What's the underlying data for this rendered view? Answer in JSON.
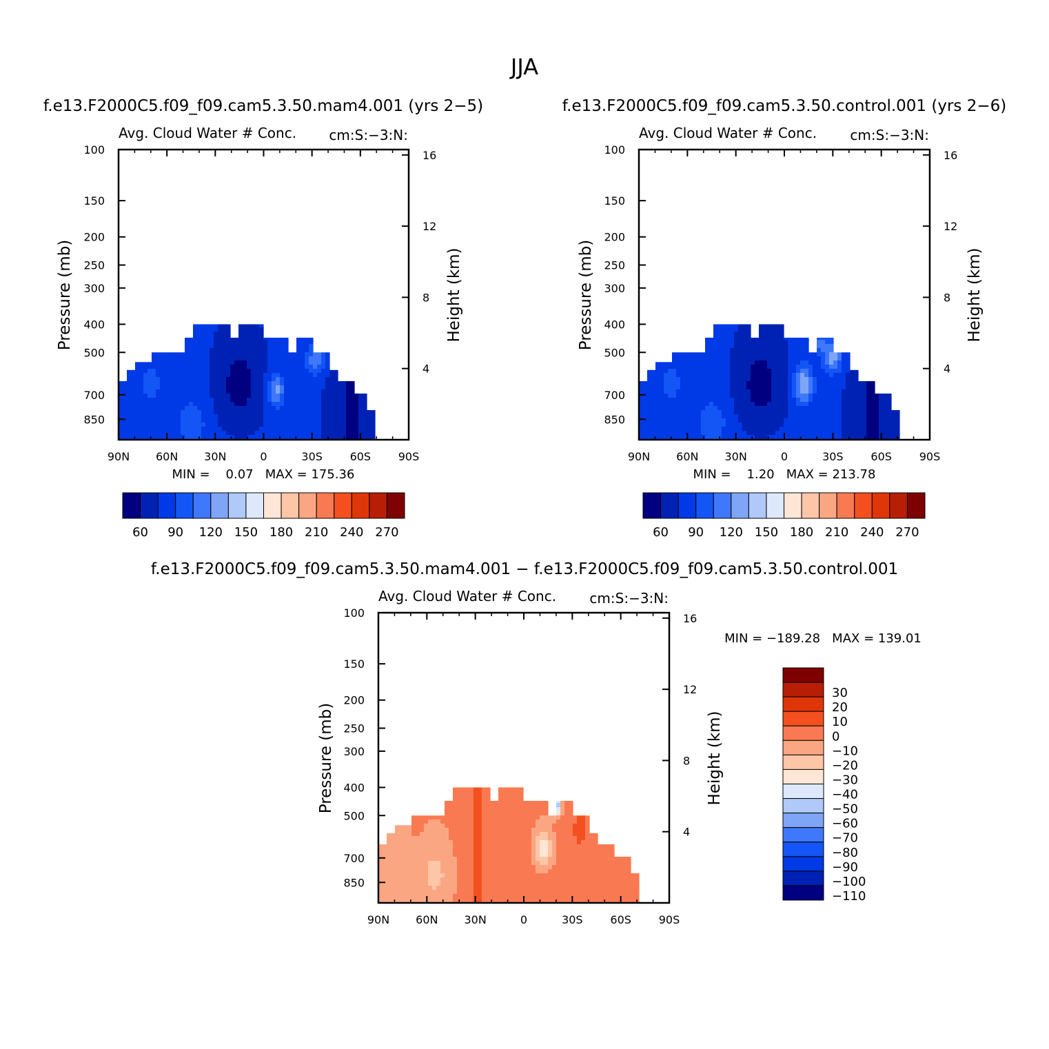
{
  "figure": {
    "main_title": "JJA"
  },
  "chart_data": [
    {
      "type": "heatmap",
      "case_title": "f.e13.F2000C5.f09_f09.cam5.3.50.mam4.001 (yrs 2−5)",
      "variable_label": "Avg. Cloud Water # Conc.",
      "units_label": "cm:S:−3:N:",
      "ylabel": "Pressure (mb)",
      "y2label": "Height (km)",
      "x_ticks": [
        "90N",
        "60N",
        "30N",
        "0",
        "30S",
        "60S",
        "90S"
      ],
      "xlim": [
        90,
        -90
      ],
      "y_ticks": [
        100,
        150,
        200,
        250,
        300,
        400,
        500,
        700,
        850
      ],
      "ylim": [
        100,
        1000
      ],
      "y_scale": "log",
      "y2_ticks": [
        16,
        12,
        8,
        4
      ],
      "min_max": "MIN =    0.07   MAX = 175.36",
      "colorbar_ticks": [
        "60",
        "90",
        "120",
        "150",
        "180",
        "210",
        "240",
        "270"
      ],
      "colorbar_orientation": "horizontal",
      "data_field": "cloud water number concentration, values mostly 0-175, highest near 5N-15S at 500-850 mb",
      "top_profile": [
        [
          90,
          620
        ],
        [
          85,
          575
        ],
        [
          80,
          540
        ],
        [
          70,
          500
        ],
        [
          50,
          445
        ],
        [
          45,
          400
        ],
        [
          30,
          400
        ],
        [
          25,
          400
        ],
        [
          20,
          445
        ],
        [
          15,
          400
        ],
        [
          5,
          400
        ],
        [
          0,
          445
        ],
        [
          -5,
          445
        ],
        [
          -15,
          500
        ],
        [
          -20,
          445
        ],
        [
          -30,
          500
        ],
        [
          -40,
          575
        ],
        [
          -45,
          625
        ],
        [
          -55,
          690
        ],
        [
          -65,
          780
        ],
        [
          -70,
          800
        ]
      ]
    },
    {
      "type": "heatmap",
      "case_title": "f.e13.F2000C5.f09_f09.cam5.3.50.control.001 (yrs 2−6)",
      "variable_label": "Avg. Cloud Water # Conc.",
      "units_label": "cm:S:−3:N:",
      "ylabel": "Pressure (mb)",
      "y2label": "Height (km)",
      "x_ticks": [
        "90N",
        "60N",
        "30N",
        "0",
        "30S",
        "60S",
        "90S"
      ],
      "xlim": [
        90,
        -90
      ],
      "y_ticks": [
        100,
        150,
        200,
        250,
        300,
        400,
        500,
        700,
        850
      ],
      "ylim": [
        100,
        1000
      ],
      "y_scale": "log",
      "y2_ticks": [
        16,
        12,
        8,
        4
      ],
      "min_max": "MIN =    1.20   MAX = 213.78",
      "colorbar_ticks": [
        "60",
        "90",
        "120",
        "150",
        "180",
        "210",
        "240",
        "270"
      ],
      "colorbar_orientation": "horizontal",
      "data_field": "cloud water number concentration, values mostly 0-214, highest near 10S-25S at 500-850 mb",
      "top_profile": [
        [
          90,
          620
        ],
        [
          85,
          575
        ],
        [
          80,
          540
        ],
        [
          70,
          500
        ],
        [
          50,
          445
        ],
        [
          45,
          400
        ],
        [
          30,
          400
        ],
        [
          25,
          400
        ],
        [
          20,
          445
        ],
        [
          15,
          400
        ],
        [
          5,
          400
        ],
        [
          0,
          445
        ],
        [
          -5,
          445
        ],
        [
          -15,
          500
        ],
        [
          -20,
          445
        ],
        [
          -30,
          500
        ],
        [
          -40,
          575
        ],
        [
          -45,
          625
        ],
        [
          -55,
          690
        ],
        [
          -65,
          780
        ],
        [
          -70,
          800
        ]
      ]
    },
    {
      "type": "heatmap",
      "case_title": "f.e13.F2000C5.f09_f09.cam5.3.50.mam4.001 − f.e13.F2000C5.f09_f09.cam5.3.50.control.001",
      "variable_label": "Avg. Cloud Water # Conc.",
      "units_label": "cm:S:−3:N:",
      "ylabel": "Pressure (mb)",
      "y2label": "Height (km)",
      "x_ticks": [
        "90N",
        "60N",
        "30N",
        "0",
        "30S",
        "60S",
        "90S"
      ],
      "xlim": [
        90,
        -90
      ],
      "y_ticks": [
        100,
        150,
        200,
        250,
        300,
        400,
        500,
        700,
        850
      ],
      "ylim": [
        100,
        1000
      ],
      "y_scale": "log",
      "y2_ticks": [
        16,
        12,
        8,
        4
      ],
      "min_max": "MIN = −189.28   MAX = 139.01",
      "colorbar_ticks": [
        "30",
        "20",
        "10",
        "0",
        "−10",
        "−20",
        "−30",
        "−40",
        "−50",
        "−60",
        "−70",
        "−80",
        "−90",
        "−100",
        "−110"
      ],
      "colorbar_orientation": "vertical",
      "data_field": "difference field, mostly 0 to -20, negative pocket near 15S-30S at 450-500 mb",
      "top_profile": [
        [
          90,
          620
        ],
        [
          85,
          575
        ],
        [
          80,
          540
        ],
        [
          70,
          500
        ],
        [
          50,
          445
        ],
        [
          45,
          400
        ],
        [
          30,
          400
        ],
        [
          25,
          400
        ],
        [
          20,
          445
        ],
        [
          15,
          400
        ],
        [
          5,
          400
        ],
        [
          0,
          445
        ],
        [
          -5,
          445
        ],
        [
          -15,
          500
        ],
        [
          -20,
          445
        ],
        [
          -30,
          500
        ],
        [
          -40,
          575
        ],
        [
          -45,
          625
        ],
        [
          -55,
          690
        ],
        [
          -65,
          780
        ],
        [
          -70,
          800
        ]
      ]
    }
  ],
  "palettes": {
    "absolute": [
      "#000080",
      "#0022b4",
      "#0039e6",
      "#1455f5",
      "#3f78fb",
      "#7fa5f6",
      "#b0c9f8",
      "#dde9fb",
      "#fee6d6",
      "#fdc6a7",
      "#fba683",
      "#f97a52",
      "#f4501f",
      "#df3609",
      "#b81e05",
      "#7e0000"
    ],
    "difference": [
      "#7e0000",
      "#b81e05",
      "#df3609",
      "#f4501f",
      "#f97a52",
      "#fba683",
      "#fdc6a7",
      "#fee6d6",
      "#dde9fb",
      "#b0c9f8",
      "#7fa5f6",
      "#3f78fb",
      "#1455f5",
      "#0039e6",
      "#0022b4",
      "#000080"
    ]
  }
}
